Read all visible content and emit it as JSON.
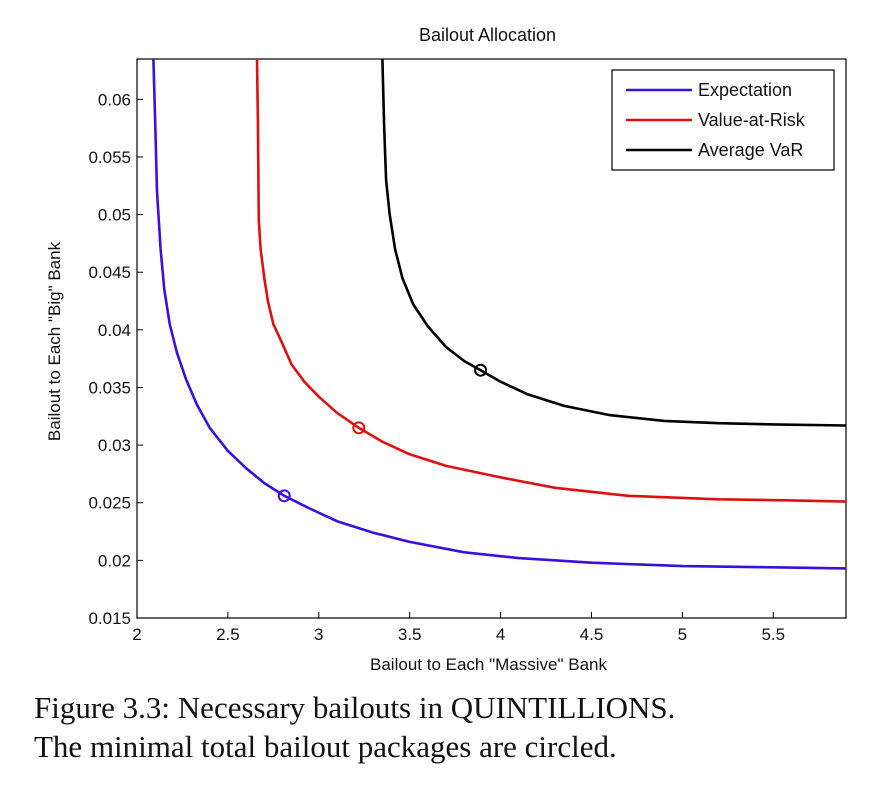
{
  "chart_data": {
    "type": "line",
    "title": "Bailout Allocation",
    "xlabel": "Bailout to Each \"Massive\" Bank",
    "ylabel": "Bailout to Each \"Big\" Bank",
    "xlim": [
      2,
      5.9
    ],
    "ylim": [
      0.015,
      0.0635
    ],
    "xticks": [
      2,
      2.5,
      3,
      3.5,
      4,
      4.5,
      5,
      5.5
    ],
    "xtick_labels": [
      "2",
      "2.5",
      "3",
      "3.5",
      "4",
      "4.5",
      "5",
      "5.5"
    ],
    "yticks": [
      0.015,
      0.02,
      0.025,
      0.03,
      0.035,
      0.04,
      0.045,
      0.05,
      0.055,
      0.06
    ],
    "ytick_labels": [
      "0.015",
      "0.02",
      "0.025",
      "0.03",
      "0.035",
      "0.04",
      "0.045",
      "0.05",
      "0.055",
      "0.06"
    ],
    "grid": false,
    "legend_position": "top-right",
    "series": [
      {
        "name": "Expectation",
        "color": "#3a0fe0",
        "x": [
          2.09,
          2.1,
          2.11,
          2.13,
          2.15,
          2.18,
          2.22,
          2.27,
          2.33,
          2.4,
          2.5,
          2.6,
          2.7,
          2.81,
          2.95,
          3.1,
          3.3,
          3.5,
          3.8,
          4.1,
          4.5,
          5.0,
          5.5,
          5.9
        ],
        "y": [
          0.0635,
          0.058,
          0.052,
          0.047,
          0.0435,
          0.0405,
          0.038,
          0.0357,
          0.0335,
          0.0315,
          0.0295,
          0.028,
          0.0267,
          0.0256,
          0.0245,
          0.0234,
          0.0224,
          0.0216,
          0.0207,
          0.0202,
          0.0198,
          0.0195,
          0.0194,
          0.0193
        ]
      },
      {
        "name": "Value-at-Risk",
        "color": "#e01010",
        "x": [
          2.66,
          2.665,
          2.67,
          2.68,
          2.7,
          2.72,
          2.75,
          2.8,
          2.85,
          2.92,
          3.0,
          3.1,
          3.22,
          3.35,
          3.5,
          3.7,
          4.0,
          4.3,
          4.7,
          5.2,
          5.6,
          5.9
        ],
        "y": [
          0.0635,
          0.058,
          0.0495,
          0.047,
          0.0445,
          0.0425,
          0.0405,
          0.0388,
          0.037,
          0.0355,
          0.0342,
          0.0328,
          0.0315,
          0.0303,
          0.0292,
          0.0282,
          0.0272,
          0.0263,
          0.0256,
          0.0253,
          0.0252,
          0.0251
        ]
      },
      {
        "name": "Average VaR",
        "color": "#000000",
        "x": [
          3.35,
          3.36,
          3.37,
          3.39,
          3.42,
          3.46,
          3.52,
          3.6,
          3.7,
          3.8,
          3.89,
          4.0,
          4.15,
          4.35,
          4.6,
          4.9,
          5.2,
          5.5,
          5.9
        ],
        "y": [
          0.0635,
          0.0575,
          0.053,
          0.05,
          0.047,
          0.0445,
          0.0422,
          0.0403,
          0.0385,
          0.0373,
          0.0365,
          0.0355,
          0.0344,
          0.0334,
          0.0326,
          0.0321,
          0.0319,
          0.0318,
          0.0317
        ]
      }
    ],
    "markers": [
      {
        "series": "Expectation",
        "x": 2.81,
        "y": 0.0256,
        "color": "#3a0fe0"
      },
      {
        "series": "Value-at-Risk",
        "x": 3.22,
        "y": 0.0315,
        "color": "#e01010"
      },
      {
        "series": "Average VaR",
        "x": 3.89,
        "y": 0.0365,
        "color": "#000000"
      }
    ]
  },
  "caption": {
    "line1": "Figure 3.3:  Necessary bailouts in QUINTILLIONS.",
    "line2": "The minimal total bailout packages are circled."
  }
}
